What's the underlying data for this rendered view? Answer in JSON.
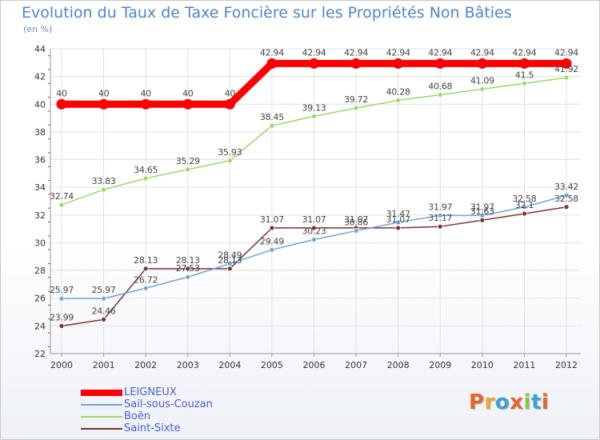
{
  "chart_data": {
    "type": "line",
    "title": "Evolution du Taux de Taxe Foncière sur les Propriétés Non Bâties",
    "unit_label": "(en %)",
    "xlabel": "",
    "ylabel": "",
    "ylim": [
      22,
      44
    ],
    "y_ticks": [
      "22",
      "24",
      "26",
      "28",
      "30",
      "32",
      "34",
      "36",
      "38",
      "40",
      "42",
      "44"
    ],
    "categories": [
      "2000",
      "2001",
      "2002",
      "2003",
      "2004",
      "2005",
      "2006",
      "2007",
      "2008",
      "2009",
      "2010",
      "2011",
      "2012"
    ],
    "legend_position": "bottom-left",
    "series": [
      {
        "name": "LEIGNEUX",
        "color": "#ff0000",
        "values": [
          40,
          40,
          40,
          40,
          40,
          42.94,
          42.94,
          42.94,
          42.94,
          42.94,
          42.94,
          42.94,
          42.94
        ],
        "labels": [
          "40",
          "40",
          "40",
          "40",
          "40",
          "42.94",
          "42.94",
          "42.94",
          "42.94",
          "42.94",
          "42.94",
          "42.94",
          "42.94"
        ]
      },
      {
        "name": "Sail-sous-Couzan",
        "color": "#6ea6d4",
        "values": [
          25.97,
          25.97,
          26.72,
          27.53,
          28.49,
          29.49,
          30.23,
          30.86,
          31.47,
          31.97,
          31.97,
          32.58,
          33.42
        ],
        "labels": [
          "25.97",
          "25.97",
          "26.72",
          "27.53",
          "28.49",
          "29.49",
          "30.23",
          "30.86",
          "31.47",
          "31.97",
          "31.97",
          "32.58",
          "33.42"
        ]
      },
      {
        "name": "Boën",
        "color": "#9ad86a",
        "values": [
          32.74,
          33.83,
          34.65,
          35.29,
          35.93,
          38.45,
          39.13,
          39.72,
          40.28,
          40.68,
          41.09,
          41.5,
          41.92
        ],
        "labels": [
          "32.74",
          "33.83",
          "34.65",
          "35.29",
          "35.93",
          "38.45",
          "39.13",
          "39.72",
          "40.28",
          "40.68",
          "41.09",
          "41.5",
          "41.92"
        ]
      },
      {
        "name": "Saint-Sixte",
        "color": "#7a3333",
        "values": [
          23.99,
          24.46,
          28.13,
          28.13,
          28.13,
          31.07,
          31.07,
          31.07,
          31.07,
          31.17,
          31.63,
          32.1,
          32.58
        ],
        "labels": [
          "23.99",
          "24.46",
          "28.13",
          "28.13",
          "28.13",
          "31.07",
          "31.07",
          "31.07",
          "31.07",
          "31.17",
          "31.63",
          "32.1",
          "32.58"
        ]
      }
    ]
  },
  "logo": {
    "text": "Proxiti",
    "colors": [
      "#e8642c",
      "#f0a22a",
      "#3aa0d8",
      "#e8642c",
      "#8cc63f",
      "#3aa0d8",
      "#e8642c"
    ]
  }
}
